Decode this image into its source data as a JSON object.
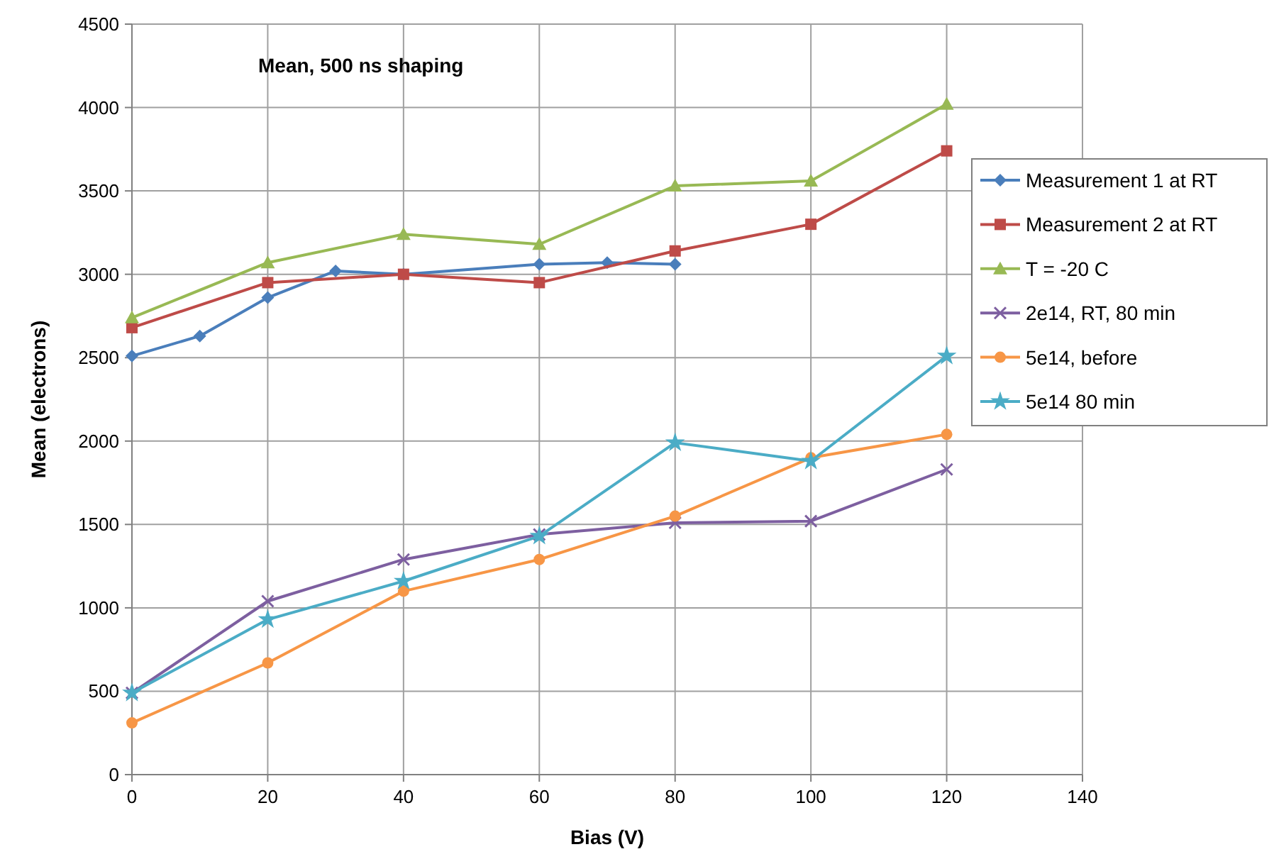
{
  "chart_data": {
    "type": "line",
    "xlabel": "Bias (V)",
    "ylabel": "Mean (electrons)",
    "annotations": [
      "Mean, 500 ns shaping"
    ],
    "xlim": [
      0,
      140
    ],
    "xticks": [
      0,
      20,
      40,
      60,
      80,
      100,
      120,
      140
    ],
    "ylim": [
      0,
      4500
    ],
    "yticks": [
      0,
      500,
      1000,
      1500,
      2000,
      2500,
      3000,
      3500,
      4000,
      4500
    ],
    "grid": true,
    "legend": "right",
    "series": [
      {
        "name": "Measurement 1 at RT",
        "color": "#4a7ebb",
        "marker": "diamond",
        "x": [
          0,
          10,
          20,
          30,
          40,
          60,
          70,
          80
        ],
        "values": [
          2510,
          2630,
          2860,
          3020,
          3000,
          3060,
          3070,
          3060
        ]
      },
      {
        "name": "Measurement 2 at  RT",
        "color": "#be4b48",
        "marker": "square",
        "x": [
          0,
          20,
          40,
          60,
          80,
          100,
          120
        ],
        "values": [
          2680,
          2950,
          3000,
          2950,
          3140,
          3300,
          3740
        ]
      },
      {
        "name": "T = -20 C",
        "color": "#98b954",
        "marker": "triangle",
        "x": [
          0,
          20,
          40,
          60,
          80,
          100,
          120
        ],
        "values": [
          2740,
          3070,
          3240,
          3180,
          3530,
          3560,
          4020
        ]
      },
      {
        "name": "2e14, RT, 80 min",
        "color": "#7d5fa0",
        "marker": "cross",
        "x": [
          0,
          20,
          40,
          60,
          80,
          100,
          120
        ],
        "values": [
          490,
          1040,
          1290,
          1440,
          1510,
          1520,
          1830
        ]
      },
      {
        "name": "5e14, before",
        "color": "#f79646",
        "marker": "circle",
        "x": [
          0,
          20,
          40,
          60,
          80,
          100,
          120
        ],
        "values": [
          310,
          670,
          1100,
          1290,
          1550,
          1900,
          2040
        ]
      },
      {
        "name": "5e14 80 min",
        "color": "#4bacc6",
        "marker": "star",
        "x": [
          0,
          20,
          40,
          60,
          80,
          100,
          120
        ],
        "values": [
          490,
          930,
          1160,
          1430,
          1990,
          1880,
          2510
        ]
      }
    ]
  }
}
